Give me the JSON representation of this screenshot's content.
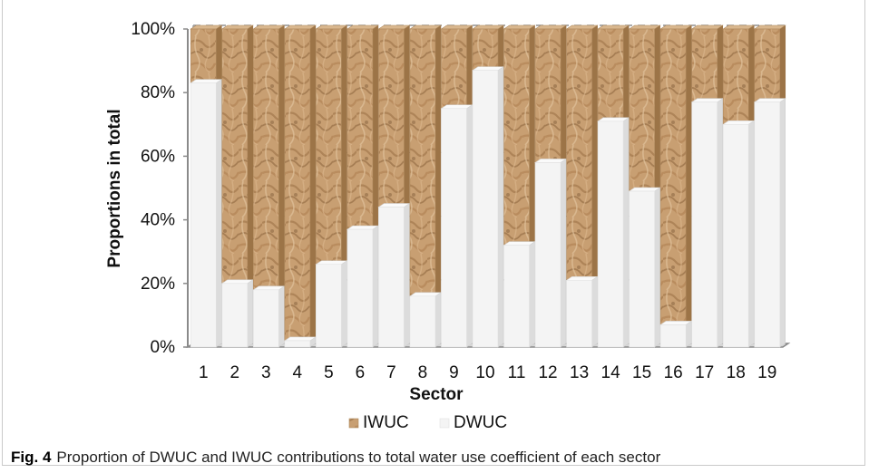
{
  "caption": {
    "label": "Fig. 4",
    "text": "Proportion of DWUC and IWUC contributions to total water use coefficient of each sector"
  },
  "chart_data": {
    "type": "bar",
    "stacked": true,
    "percent_stacked": true,
    "xlabel": "Sector",
    "ylabel": "Proportions in total",
    "ylim": [
      0,
      100
    ],
    "yticks": [
      "0%",
      "20%",
      "40%",
      "60%",
      "80%",
      "100%"
    ],
    "grid": "horizontal dashed",
    "legend_position": "bottom-center",
    "categories": [
      "1",
      "2",
      "3",
      "4",
      "5",
      "6",
      "7",
      "8",
      "9",
      "10",
      "11",
      "12",
      "13",
      "14",
      "15",
      "16",
      "17",
      "18",
      "19"
    ],
    "series": [
      {
        "name": "DWUC",
        "color": "#f4f4f4",
        "values": [
          83,
          20,
          18,
          2,
          26,
          37,
          44,
          16,
          75,
          87,
          32,
          58,
          21,
          71,
          49,
          7,
          77,
          70,
          77
        ]
      },
      {
        "name": "IWUC",
        "color": "#c49a6c",
        "values": [
          17,
          80,
          82,
          98,
          74,
          63,
          56,
          84,
          25,
          13,
          68,
          42,
          79,
          29,
          51,
          93,
          23,
          30,
          23
        ]
      }
    ],
    "legend_order": [
      "IWUC",
      "DWUC"
    ]
  }
}
